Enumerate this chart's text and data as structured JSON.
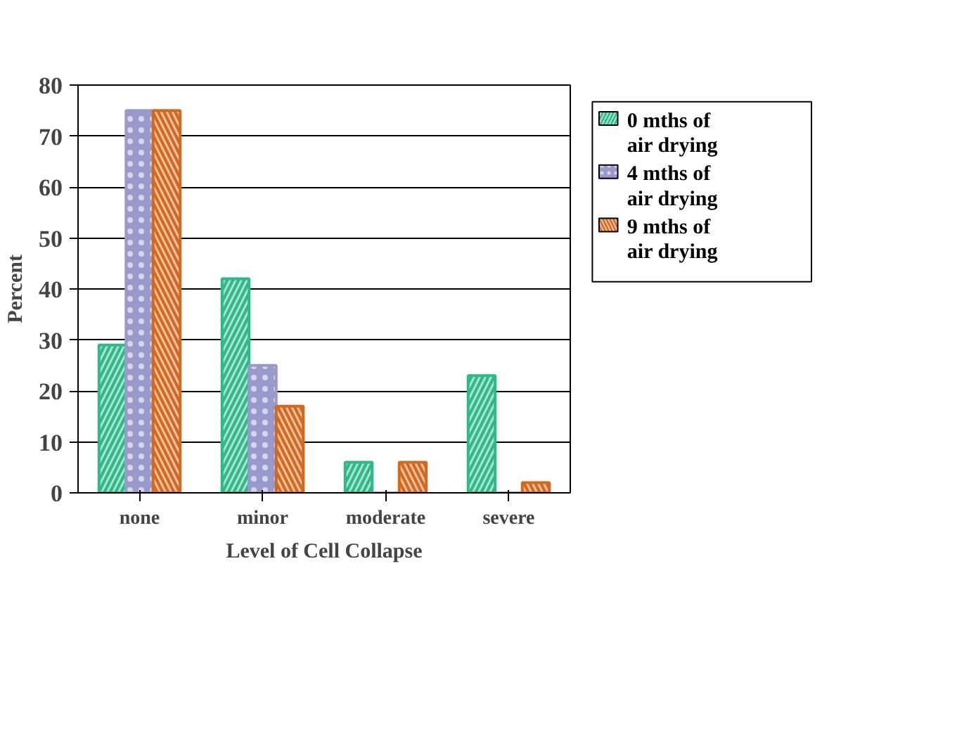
{
  "chart_data": {
    "type": "bar",
    "xlabel": "Level of Cell Collapse",
    "ylabel": "Percent",
    "categories": [
      "none",
      "minor",
      "moderate",
      "severe"
    ],
    "series": [
      {
        "name": "0 mths of air drying",
        "color": "#2fb98a",
        "values": [
          29,
          42,
          6,
          23
        ]
      },
      {
        "name": "4 mths of air drying",
        "color": "#9999cc",
        "values": [
          75,
          25,
          0,
          0
        ]
      },
      {
        "name": "9 mths of air drying",
        "color": "#d2691e",
        "values": [
          75,
          17,
          6,
          2
        ]
      }
    ],
    "ylim": [
      0,
      80
    ],
    "yticks": [
      0,
      10,
      20,
      30,
      40,
      50,
      60,
      70,
      80
    ],
    "grid": "y",
    "legend": "right"
  }
}
